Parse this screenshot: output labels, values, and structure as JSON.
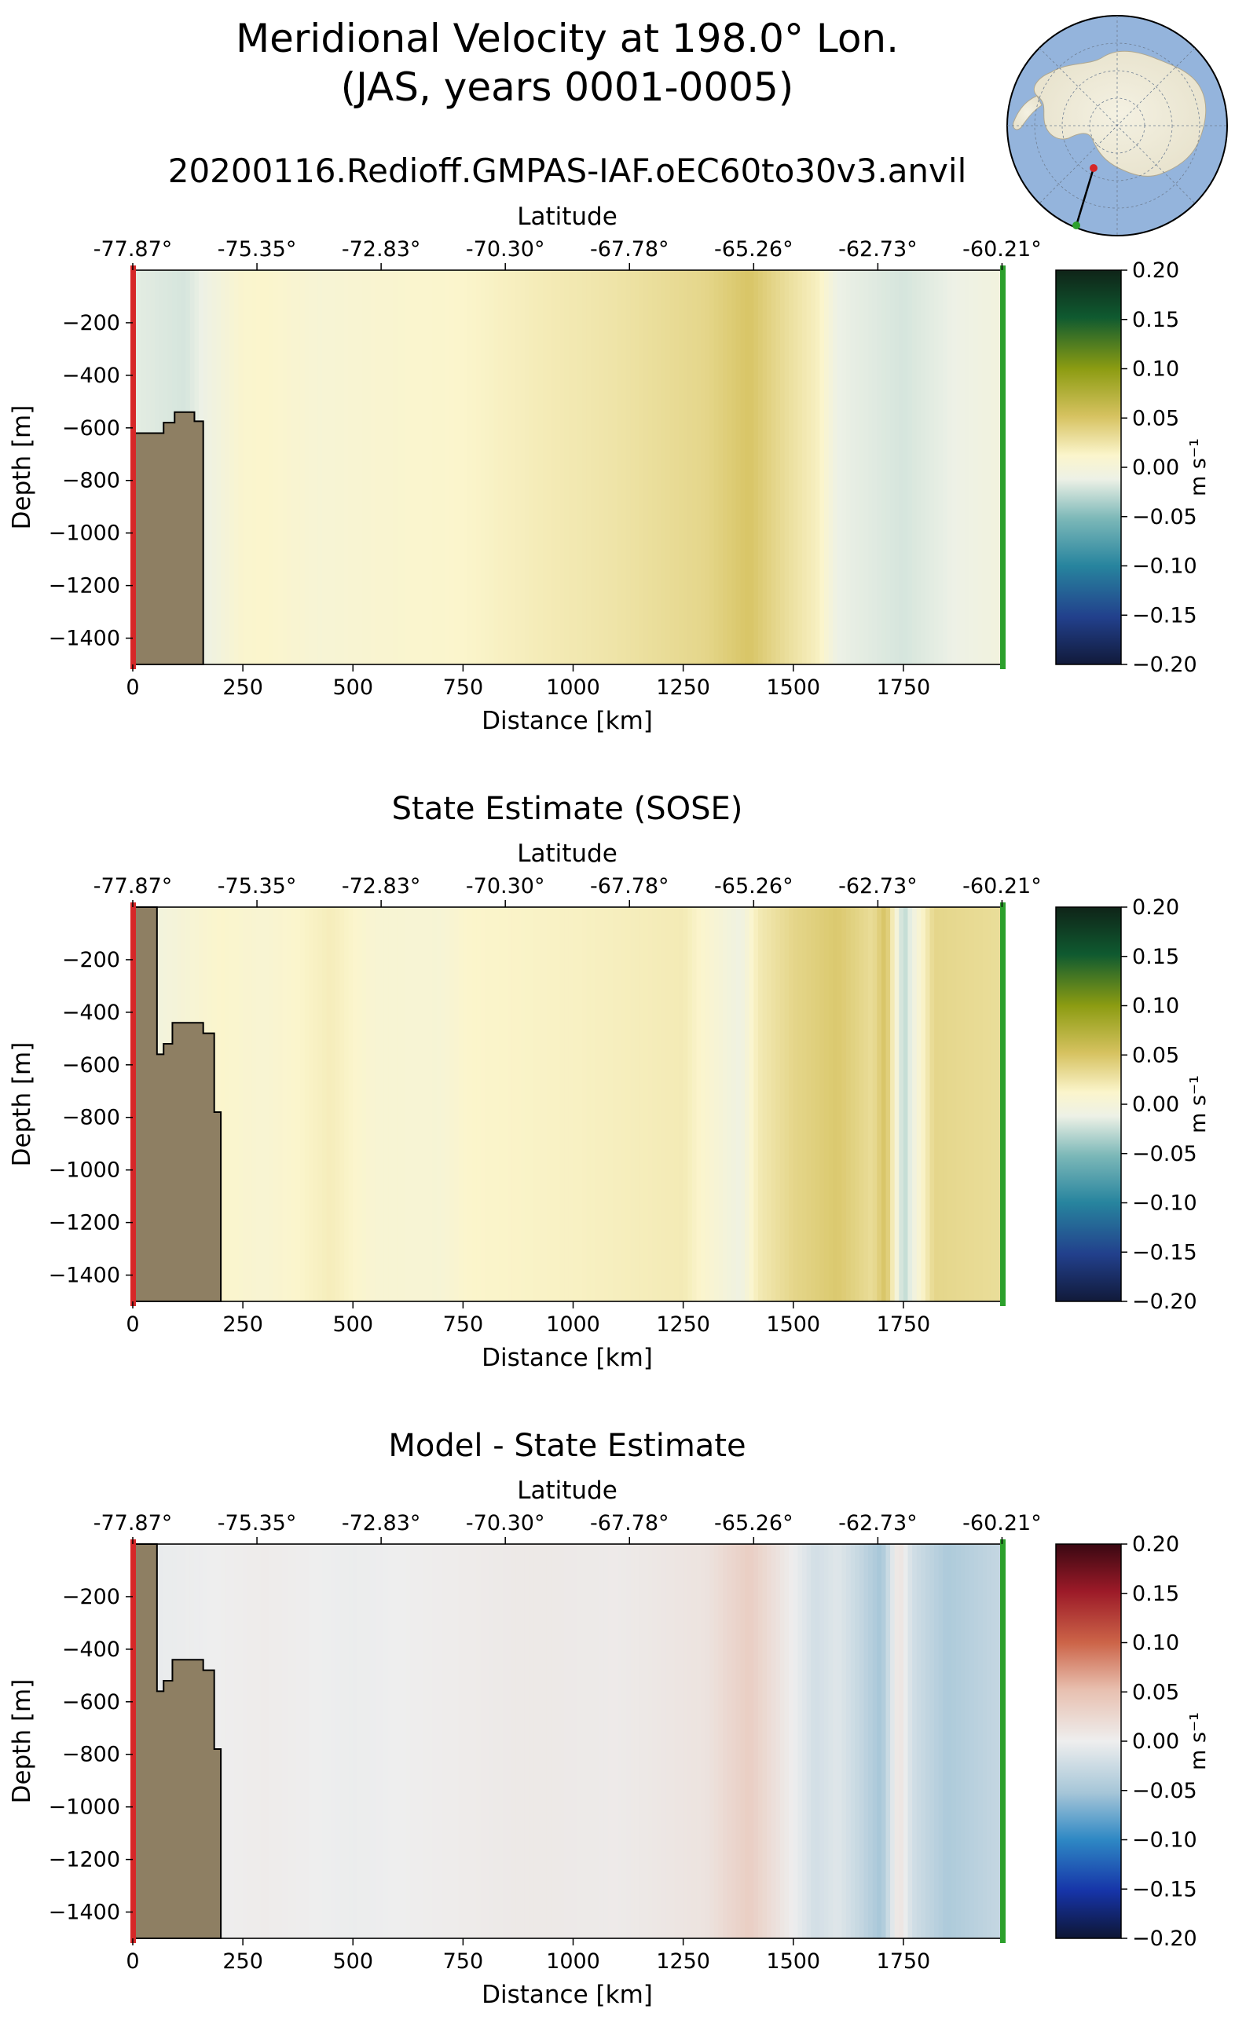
{
  "figure": {
    "title_line1": "Meridional Velocity at 198.0° Lon.",
    "title_line2": "(JAS, years 0001-0005)",
    "run_name": "20200116.Redioff.GMPAS-IAF.oEC60to30v3.anvil",
    "colors": {
      "start_marker": "#d62728",
      "end_marker": "#2ca02c",
      "bathymetry_fill": "#8e7f63",
      "ocean_map": "#94b4dc",
      "land_map": "#f0ecdc"
    }
  },
  "inset_map": {
    "description_icon": "antarctic-polar-map-icon"
  },
  "panels": [
    {
      "id": "model",
      "title": "",
      "colormap": "velocity",
      "colorbar_label": "m s⁻¹"
    },
    {
      "id": "sose",
      "title": "State Estimate (SOSE)",
      "colormap": "velocity",
      "colorbar_label": "m s⁻¹"
    },
    {
      "id": "diff",
      "title": "Model - State Estimate",
      "colormap": "difference",
      "colorbar_label": "m s⁻¹"
    }
  ],
  "chart_data": {
    "type": "heatmap",
    "xlabel": "Distance [km]",
    "ylabel": "Depth [m]",
    "top_xlabel": "Latitude",
    "xlim": [
      0,
      1975
    ],
    "ylim": [
      -1500,
      0
    ],
    "x_ticks": [
      0,
      250,
      500,
      750,
      1000,
      1250,
      1500,
      1750
    ],
    "x_tick_labels": [
      "0",
      "250",
      "500",
      "750",
      "1000",
      "1250",
      "1500",
      "1750"
    ],
    "y_ticks": [
      -200,
      -400,
      -600,
      -800,
      -1000,
      -1200,
      -1400
    ],
    "y_tick_labels": [
      "−200",
      "−400",
      "−600",
      "−800",
      "−1000",
      "−1200",
      "−1400"
    ],
    "lat_ticks_km": [
      0,
      282,
      564,
      846,
      1128,
      1410,
      1692,
      1974
    ],
    "lat_tick_labels": [
      "-77.87°",
      "-75.35°",
      "-72.83°",
      "-70.30°",
      "-67.78°",
      "-65.26°",
      "-62.73°",
      "-60.21°"
    ],
    "colorbar_ticks": [
      0.2,
      0.15,
      0.1,
      0.05,
      0.0,
      -0.05,
      -0.1,
      -0.15,
      -0.2
    ],
    "colorbar_tick_labels": [
      "0.20",
      "0.15",
      "0.10",
      "0.05",
      "0.00",
      "−0.05",
      "−0.10",
      "−0.15",
      "−0.20"
    ],
    "clim": [
      -0.2,
      0.2
    ],
    "bathymetry": {
      "model": [
        [
          0,
          -620
        ],
        [
          70,
          -620
        ],
        [
          70,
          -580
        ],
        [
          95,
          -580
        ],
        [
          95,
          -540
        ],
        [
          140,
          -540
        ],
        [
          140,
          -575
        ],
        [
          160,
          -575
        ],
        [
          160,
          -1500
        ]
      ],
      "sose": [
        [
          0,
          0
        ],
        [
          55,
          0
        ],
        [
          55,
          -560
        ],
        [
          70,
          -560
        ],
        [
          70,
          -520
        ],
        [
          90,
          -520
        ],
        [
          90,
          -440
        ],
        [
          160,
          -440
        ],
        [
          160,
          -480
        ],
        [
          185,
          -480
        ],
        [
          185,
          -780
        ],
        [
          200,
          -780
        ],
        [
          200,
          -1500
        ]
      ],
      "diff": [
        [
          0,
          0
        ],
        [
          55,
          0
        ],
        [
          55,
          -560
        ],
        [
          70,
          -560
        ],
        [
          70,
          -520
        ],
        [
          90,
          -520
        ],
        [
          90,
          -440
        ],
        [
          160,
          -440
        ],
        [
          160,
          -480
        ],
        [
          185,
          -480
        ],
        [
          185,
          -780
        ],
        [
          200,
          -780
        ],
        [
          200,
          -1500
        ]
      ]
    },
    "section_profiles": {
      "model": [
        [
          0,
          -0.015
        ],
        [
          120,
          -0.02
        ],
        [
          250,
          0.01
        ],
        [
          300,
          0.012
        ],
        [
          420,
          0.004
        ],
        [
          550,
          0.008
        ],
        [
          750,
          0.012
        ],
        [
          900,
          0.018
        ],
        [
          1100,
          0.025
        ],
        [
          1300,
          0.035
        ],
        [
          1400,
          0.048
        ],
        [
          1480,
          0.03
        ],
        [
          1560,
          0.015
        ],
        [
          1600,
          -0.012
        ],
        [
          1750,
          -0.02
        ],
        [
          1960,
          -0.005
        ]
      ],
      "sose": [
        [
          0,
          -0.01
        ],
        [
          200,
          0.012
        ],
        [
          300,
          0.006
        ],
        [
          450,
          0.018
        ],
        [
          550,
          0.006
        ],
        [
          700,
          0.004
        ],
        [
          760,
          0.012
        ],
        [
          1000,
          0.015
        ],
        [
          1250,
          0.02
        ],
        [
          1380,
          -0.008
        ],
        [
          1420,
          0.02
        ],
        [
          1500,
          0.035
        ],
        [
          1600,
          0.045
        ],
        [
          1680,
          0.03
        ],
        [
          1710,
          0.05
        ],
        [
          1750,
          -0.03
        ],
        [
          1790,
          0.01
        ],
        [
          1820,
          0.035
        ],
        [
          1960,
          0.03
        ]
      ],
      "diff": [
        [
          0,
          -0.005
        ],
        [
          300,
          0.003
        ],
        [
          500,
          -0.002
        ],
        [
          900,
          0.006
        ],
        [
          1100,
          0.004
        ],
        [
          1300,
          0.012
        ],
        [
          1400,
          0.035
        ],
        [
          1450,
          0.018
        ],
        [
          1500,
          0.0
        ],
        [
          1550,
          -0.02
        ],
        [
          1600,
          -0.01
        ],
        [
          1650,
          -0.028
        ],
        [
          1700,
          -0.05
        ],
        [
          1740,
          0.015
        ],
        [
          1770,
          -0.02
        ],
        [
          1850,
          -0.045
        ],
        [
          1960,
          -0.03
        ]
      ]
    }
  }
}
